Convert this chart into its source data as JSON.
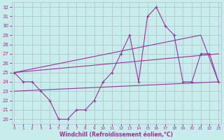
{
  "xlabel": "Windchill (Refroidissement éolien,°C)",
  "background_color": "#c8ecec",
  "grid_color": "#b0c8d0",
  "line_color": "#993399",
  "x_ticks": [
    0,
    1,
    2,
    3,
    4,
    5,
    6,
    7,
    8,
    9,
    10,
    11,
    12,
    13,
    14,
    15,
    16,
    17,
    18,
    19,
    20,
    21,
    22,
    23
  ],
  "ylim": [
    19.5,
    32.5
  ],
  "xlim": [
    -0.3,
    23.3
  ],
  "y_ticks": [
    20,
    21,
    22,
    23,
    24,
    25,
    26,
    27,
    28,
    29,
    30,
    31,
    32
  ],
  "series1_x": [
    0,
    1,
    2,
    3,
    4,
    5,
    6,
    7,
    8,
    9,
    10,
    11,
    12,
    13,
    14,
    15,
    16,
    17,
    18,
    19,
    20,
    21,
    22,
    23
  ],
  "series1_y": [
    25,
    24,
    24,
    23,
    22,
    20,
    20,
    21,
    21,
    22,
    24,
    25,
    27,
    29,
    24,
    31,
    32,
    30,
    29,
    24,
    24,
    27,
    27,
    24
  ],
  "series2_x": [
    0,
    21,
    23
  ],
  "series2_y": [
    25,
    29,
    24
  ],
  "series3_x": [
    0,
    23
  ],
  "series3_y": [
    25,
    27
  ],
  "series4_x": [
    0,
    23
  ],
  "series4_y": [
    23,
    24
  ]
}
